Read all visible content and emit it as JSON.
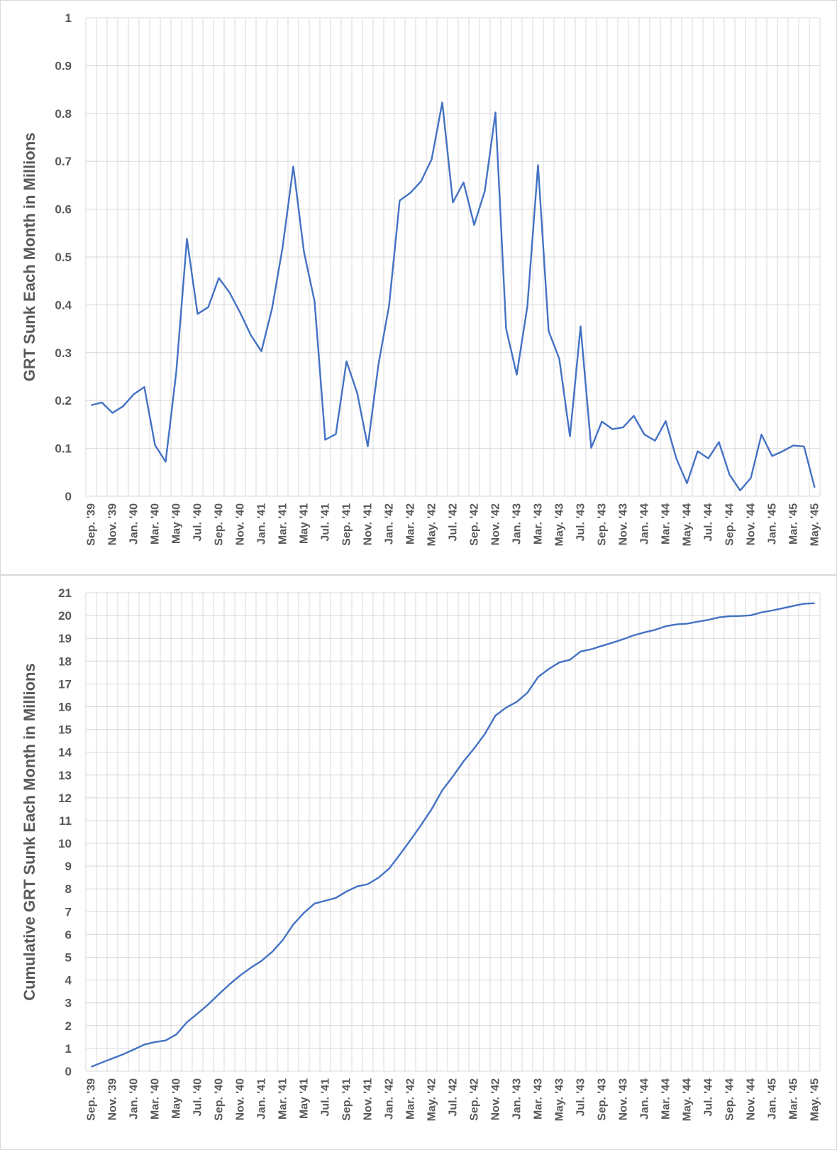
{
  "colors": {
    "line": "#4472C4",
    "grid": "#d9d9d9",
    "text": "#595959"
  },
  "chart_data": [
    {
      "type": "line",
      "ylabel": "GRT Sunk Each Month in Millions",
      "ylim": [
        0,
        1
      ],
      "yticks": [
        "0",
        "0.1",
        "0.2",
        "0.3",
        "0.4",
        "0.5",
        "0.6",
        "0.7",
        "0.8",
        "0.9",
        "1"
      ],
      "xtick_labels": [
        "Sep. '39",
        "Nov. '39",
        "Jan. '40",
        "Mar. '40",
        "May '40",
        "Jul. '40",
        "Sep. '40",
        "Nov. '40",
        "Jan. '41",
        "Mar. '41",
        "May '41",
        "Jul. '41",
        "Sep. '41",
        "Nov. '41",
        "Jan. '42",
        "Mar. '42",
        "May. '42",
        "Jul. '42",
        "Sep. '42",
        "Nov. '42",
        "Jan. '43",
        "Mar. '43",
        "May. '43",
        "Jul. '43",
        "Sep. '43",
        "Nov. '43",
        "Jan. '44",
        "Mar. '44",
        "May. '44",
        "Jul. '44",
        "Sep. '44",
        "Nov. '44",
        "Jan. '45",
        "Mar. '45",
        "May. '45"
      ],
      "values": [
        0.19,
        0.196,
        0.174,
        0.188,
        0.213,
        0.228,
        0.107,
        0.072,
        0.26,
        0.538,
        0.381,
        0.395,
        0.456,
        0.426,
        0.384,
        0.337,
        0.303,
        0.392,
        0.521,
        0.689,
        0.511,
        0.407,
        0.118,
        0.13,
        0.282,
        0.216,
        0.104,
        0.275,
        0.398,
        0.618,
        0.634,
        0.658,
        0.704,
        0.823,
        0.614,
        0.656,
        0.567,
        0.638,
        0.802,
        0.35,
        0.254,
        0.397,
        0.692,
        0.345,
        0.287,
        0.125,
        0.355,
        0.101,
        0.156,
        0.14,
        0.144,
        0.168,
        0.129,
        0.116,
        0.157,
        0.079,
        0.027,
        0.094,
        0.079,
        0.113,
        0.045,
        0.012,
        0.038,
        0.129,
        0.084,
        0.094,
        0.106,
        0.104,
        0.018
      ]
    },
    {
      "type": "line",
      "ylabel": "Cumulative GRT Sunk Each Month in Millions",
      "ylim": [
        0,
        21
      ],
      "yticks": [
        "0",
        "1",
        "2",
        "3",
        "4",
        "5",
        "6",
        "7",
        "8",
        "9",
        "10",
        "11",
        "12",
        "13",
        "14",
        "15",
        "16",
        "17",
        "18",
        "19",
        "20",
        "21"
      ],
      "xtick_labels": [
        "Sep. '39",
        "Nov. '39",
        "Jan. '40",
        "Mar. '40",
        "May '40",
        "Jul. '40",
        "Sep. '40",
        "Nov. '40",
        "Jan. '41",
        "Mar. '41",
        "May '41",
        "Jul. '41",
        "Sep. '41",
        "Nov. '41",
        "Jan. '42",
        "Mar. '42",
        "May. '42",
        "Jul. '42",
        "Sep. '42",
        "Nov. '42",
        "Jan. '43",
        "Mar. '43",
        "May. '43",
        "Jul. '43",
        "Sep. '43",
        "Nov. '43",
        "Jan. '44",
        "Mar. '44",
        "May. '44",
        "Jul. '44",
        "Sep. '44",
        "Nov. '44",
        "Jan. '45",
        "Mar. '45",
        "May. '45"
      ],
      "values": [
        0.19,
        0.38,
        0.56,
        0.74,
        0.95,
        1.17,
        1.28,
        1.35,
        1.61,
        2.15,
        2.53,
        2.93,
        3.38,
        3.81,
        4.2,
        4.54,
        4.84,
        5.23,
        5.75,
        6.44,
        6.95,
        7.36,
        7.48,
        7.61,
        7.89,
        8.11,
        8.21,
        8.49,
        8.89,
        9.5,
        10.14,
        10.8,
        11.5,
        12.33,
        12.94,
        13.6,
        14.17,
        14.8,
        15.61,
        15.96,
        16.21,
        16.61,
        17.3,
        17.65,
        17.94,
        18.06,
        18.42,
        18.52,
        18.67,
        18.81,
        18.96,
        19.13,
        19.26,
        19.37,
        19.53,
        19.61,
        19.64,
        19.73,
        19.81,
        19.92,
        19.97,
        19.98,
        20.01,
        20.14,
        20.22,
        20.32,
        20.42,
        20.52,
        20.54
      ]
    }
  ]
}
